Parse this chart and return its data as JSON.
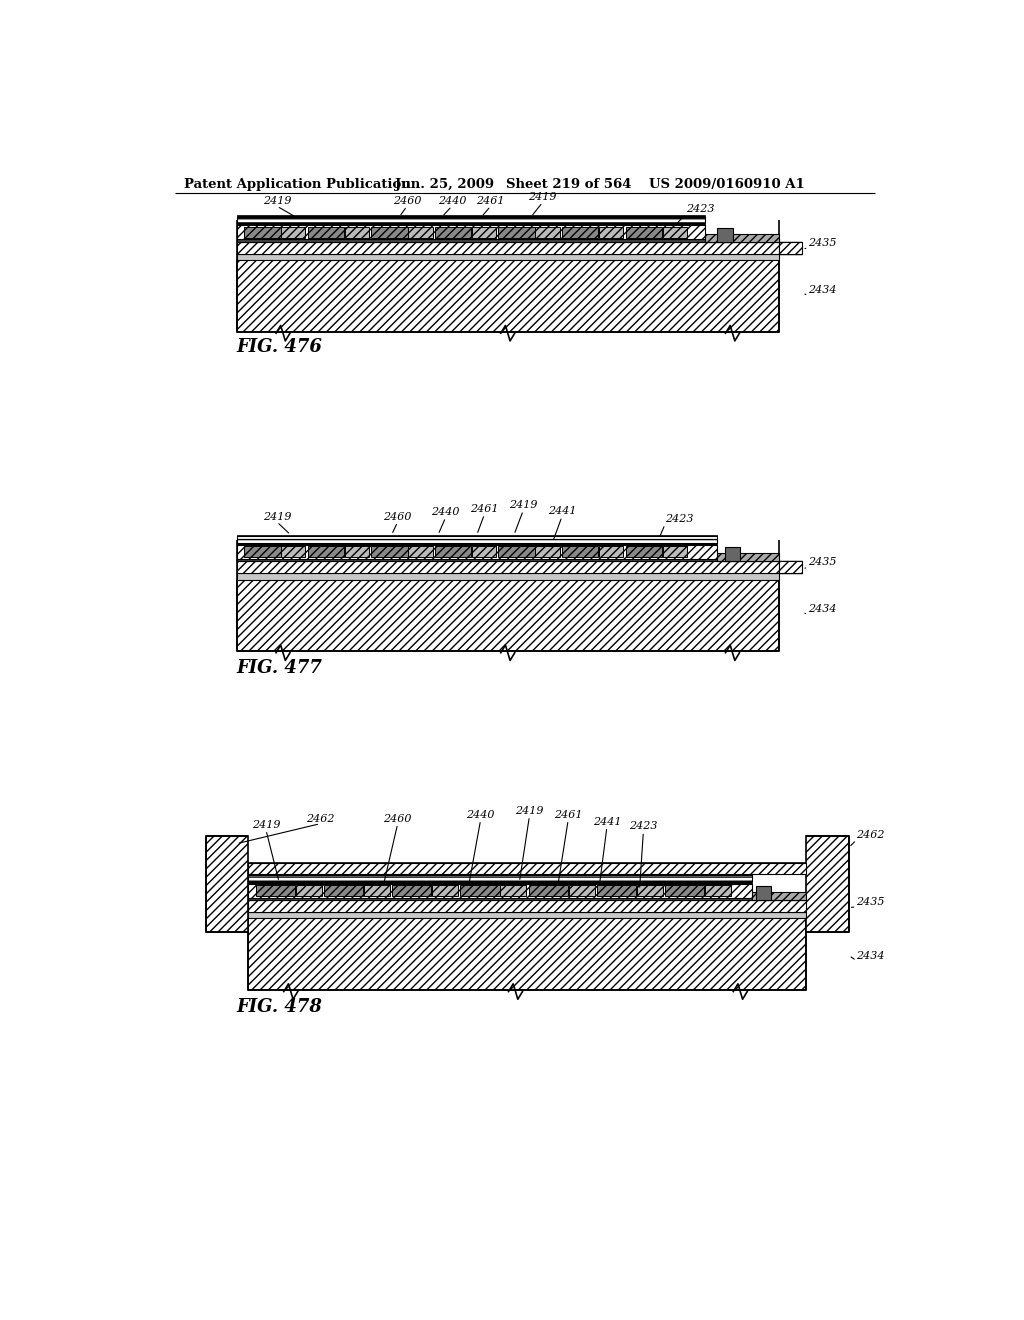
{
  "header_text": "Patent Application Publication",
  "header_date": "Jun. 25, 2009",
  "header_sheet": "Sheet 219 of 564",
  "header_patent": "US 2009/0160910 A1",
  "fig476_label": "FIG. 476",
  "fig477_label": "FIG. 477",
  "fig478_label": "FIG. 478",
  "bg_color": "#ffffff"
}
